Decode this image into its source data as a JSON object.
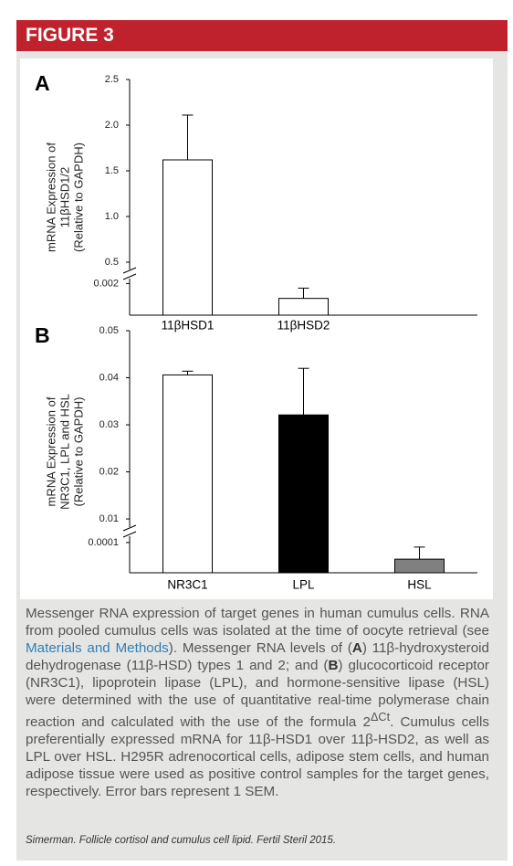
{
  "header": {
    "title": "FIGURE 3"
  },
  "chart_data": [
    {
      "type": "bar",
      "panel": "A",
      "ylabel": [
        "mRNA Expression of",
        "11βHSD1/2",
        "(Relative to GAPDH)"
      ],
      "categories": [
        "11βHSD1",
        "11βHSD2"
      ],
      "values": [
        1.62,
        0.00106
      ],
      "errors": [
        0.49,
        0.00065
      ],
      "colors": [
        "#ffffff",
        "#ffffff"
      ],
      "edgecolor": "#000000",
      "ylim_lower": [
        0,
        0.0026
      ],
      "ylim": [
        0.37,
        2.5
      ],
      "yticks": [
        0.002,
        0.5,
        {
          "value": 1,
          "label": "1.0"
        },
        1.5,
        {
          "value": 2,
          "label": "2.0"
        },
        2.5
      ]
    },
    {
      "type": "bar",
      "panel": "B",
      "ylabel": [
        "mRNA Expression of",
        "NR3C1, LPL and HSL",
        "(Relative to GAPDH)"
      ],
      "categories": [
        "NR3C1",
        "LPL",
        "HSL"
      ],
      "values": [
        0.0406,
        0.0321,
        4.5e-05
      ],
      "errors": [
        0.0008,
        0.0099,
        4e-05
      ],
      "colors": [
        "#ffffff",
        "#000000",
        "#808080"
      ],
      "edgecolor": "#000000",
      "ylim_lower": [
        0,
        0.000136
      ],
      "ylim": [
        0.0073,
        0.05
      ],
      "yticks": [
        0.0001,
        0.01,
        0.02,
        0.03,
        0.04,
        0.05
      ]
    }
  ],
  "caption": [
    "Messenger RNA expression of target genes in human cumulus cells. RNA from pooled cumulus cells was isolated at the time of oocyte retrieval (see ",
    "Materials and Methods",
    "). Messenger RNA levels of (",
    "A",
    ") 11β-hydroxysteroid dehydrogenase (11β-HSD) types 1 and 2; and (",
    "B",
    ") glucocorticoid receptor (NR3C1), lipoprotein lipase (LPL), and hormone-sensitive lipase (HSL) were determined with the use of quantitative real-time polymerase chain reaction and calculated with the use of the formula 2",
    "ΔCt",
    ". Cumulus cells preferentially expressed mRNA for 11β-HSD1 over 11β-HSD2, as well as LPL over HSL. H295R adrenocortical cells, adipose stem cells, and human adipose tissue were used as positive control samples for the target genes, respectively. Error bars represent 1 SEM."
  ],
  "citation": "Simerman. Follicle cortisol and cumulus cell lipid. Fertil Steril 2015."
}
